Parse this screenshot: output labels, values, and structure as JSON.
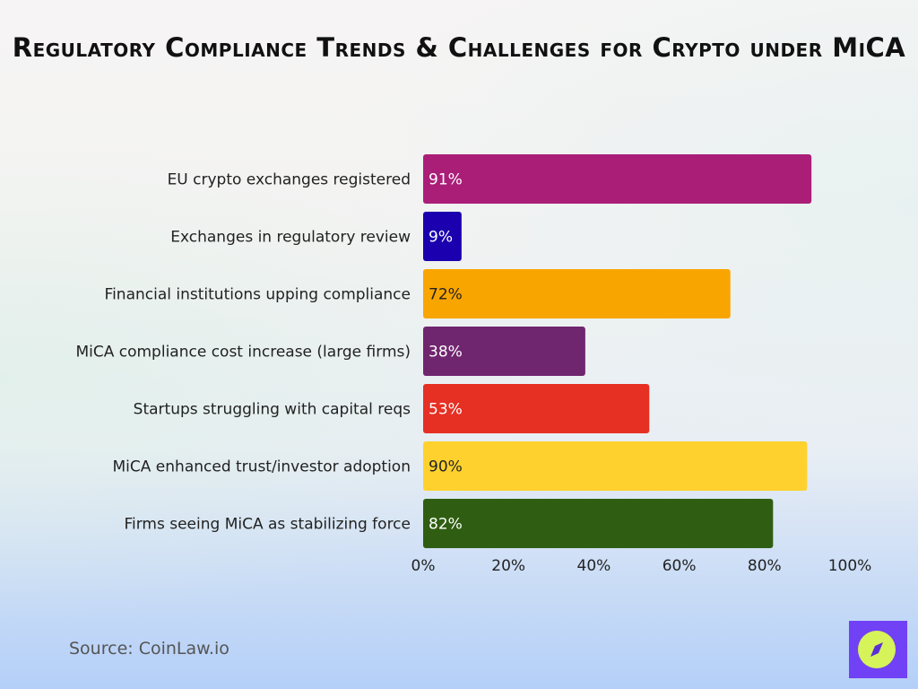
{
  "title": "Regulatory Compliance Trends & Challenges for Crypto under MiCA",
  "source": "Source: CoinLaw.io",
  "logo_icon": "compass-icon",
  "chart_data": {
    "type": "bar",
    "orientation": "horizontal",
    "title": "Regulatory Compliance Trends & Challenges for Crypto under MiCA",
    "categories": [
      "EU crypto exchanges registered",
      "Exchanges in regulatory review",
      "Financial institutions upping compliance",
      "MiCA compliance cost increase (large firms)",
      "Startups struggling with capital reqs",
      "MiCA enhanced trust/investor adoption",
      "Firms seeing MiCA as stabilizing force"
    ],
    "values": [
      91,
      9,
      72,
      38,
      53,
      90,
      82
    ],
    "data_labels": [
      "91%",
      "9%",
      "72%",
      "38%",
      "53%",
      "90%",
      "82%"
    ],
    "colors": [
      "#AA1E78",
      "#1A00AE",
      "#F9A500",
      "#70266E",
      "#E63024",
      "#FFD12E",
      "#2F5E12"
    ],
    "label_colors": [
      "#ffffff",
      "#ffffff",
      "#222222",
      "#ffffff",
      "#ffffff",
      "#222222",
      "#ffffff"
    ],
    "xlim": [
      0,
      100
    ],
    "xticks": [
      "0%",
      "20%",
      "40%",
      "60%",
      "80%",
      "100%"
    ],
    "xlabel": "",
    "ylabel": "",
    "grid": false,
    "legend": "none"
  }
}
